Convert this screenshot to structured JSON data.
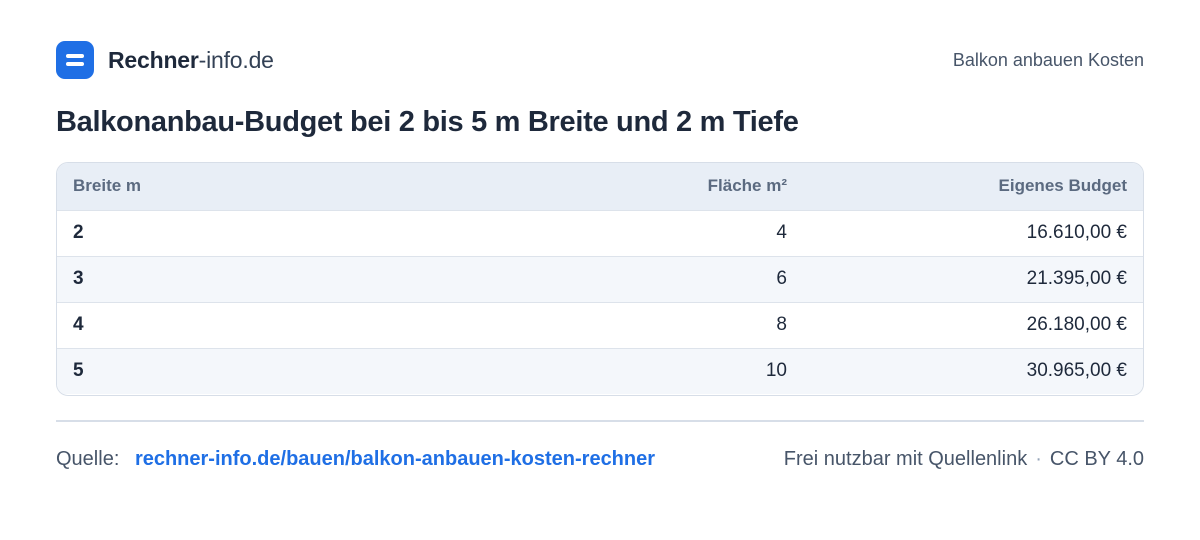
{
  "header": {
    "brand_name": "Rechner",
    "brand_domain": "-info.de",
    "topic": "Balkon anbauen Kosten"
  },
  "title": "Balkonanbau-Budget bei 2 bis 5 m Breite und 2 m Tiefe",
  "table": {
    "columns": [
      "Breite m",
      "Fläche m²",
      "Eigenes Budget"
    ],
    "rows": [
      {
        "breite": "2",
        "flaeche": "4",
        "budget": "16.610,00 €"
      },
      {
        "breite": "3",
        "flaeche": "6",
        "budget": "21.395,00 €"
      },
      {
        "breite": "4",
        "flaeche": "8",
        "budget": "26.180,00 €"
      },
      {
        "breite": "5",
        "flaeche": "10",
        "budget": "30.965,00 €"
      }
    ]
  },
  "footer": {
    "source_label": "Quelle:",
    "source_link": "rechner-info.de/bauen/balkon-anbauen-kosten-rechner",
    "license_text": "Frei nutzbar mit Quellenlink",
    "separator": "·",
    "license_name": "CC BY 4.0"
  },
  "colors": {
    "accent": "#1f6fe5",
    "header_bg": "#e8eef6",
    "alt_row_bg": "#f4f7fb"
  }
}
